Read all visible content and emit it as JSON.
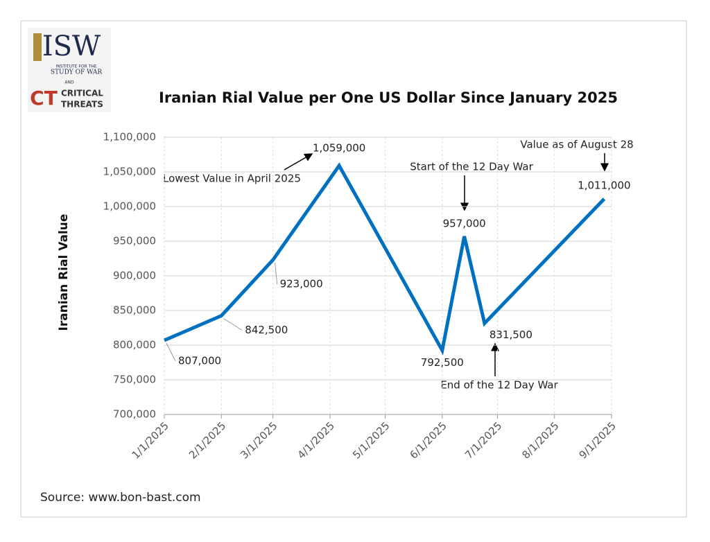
{
  "logo": {
    "name": "ISW",
    "line1": "INSTITUTE FOR THE",
    "line2": "STUDY OF WAR",
    "and": "AND",
    "ct": "CT",
    "ct1": "CRITICAL",
    "ct2": "THREATS"
  },
  "chart_data": {
    "type": "line",
    "title": "Iranian Rial Value per One US Dollar Since January 2025",
    "y_label": "Iranian Rial Value",
    "source": "Source: www.bon-bast.com",
    "x": [
      "1/1/2025",
      "2/1/2025",
      "3/1/2025",
      "4/6/2025",
      "6/1/2025",
      "6/13/2025",
      "6/24/2025",
      "8/28/2025"
    ],
    "series": [
      {
        "name": "Iranian Rial Value",
        "color": "#0070c0",
        "values": [
          807000,
          842500,
          923000,
          1059000,
          792500,
          957000,
          831500,
          1011000
        ],
        "value_labels": [
          "807,000",
          "842,500",
          "923,000",
          "1,059,000",
          "792,500",
          "957,000",
          "831,500",
          "1,011,000"
        ]
      }
    ],
    "xlim": [
      "1/1/2025",
      "9/1/2025"
    ],
    "xticks": [
      "1/1/2025",
      "2/1/2025",
      "3/1/2025",
      "4/1/2025",
      "5/1/2025",
      "6/1/2025",
      "7/1/2025",
      "8/1/2025",
      "9/1/2025"
    ],
    "ylim": [
      700000,
      1100000
    ],
    "yticks": [
      {
        "value": 700000,
        "label": "700,000"
      },
      {
        "value": 750000,
        "label": "750,000"
      },
      {
        "value": 800000,
        "label": "800,000"
      },
      {
        "value": 850000,
        "label": "850,000"
      },
      {
        "value": 900000,
        "label": "900,000"
      },
      {
        "value": 950000,
        "label": "950,000"
      },
      {
        "value": 1000000,
        "label": "1,000,000"
      },
      {
        "value": 1050000,
        "label": "1,050,000"
      },
      {
        "value": 1100000,
        "label": "1,100,000"
      }
    ],
    "grid": true,
    "annotations": [
      "Lowest Value in April 2025",
      "Start of the 12 Day War",
      "End of the 12 Day War",
      "Value as of August 28"
    ]
  }
}
